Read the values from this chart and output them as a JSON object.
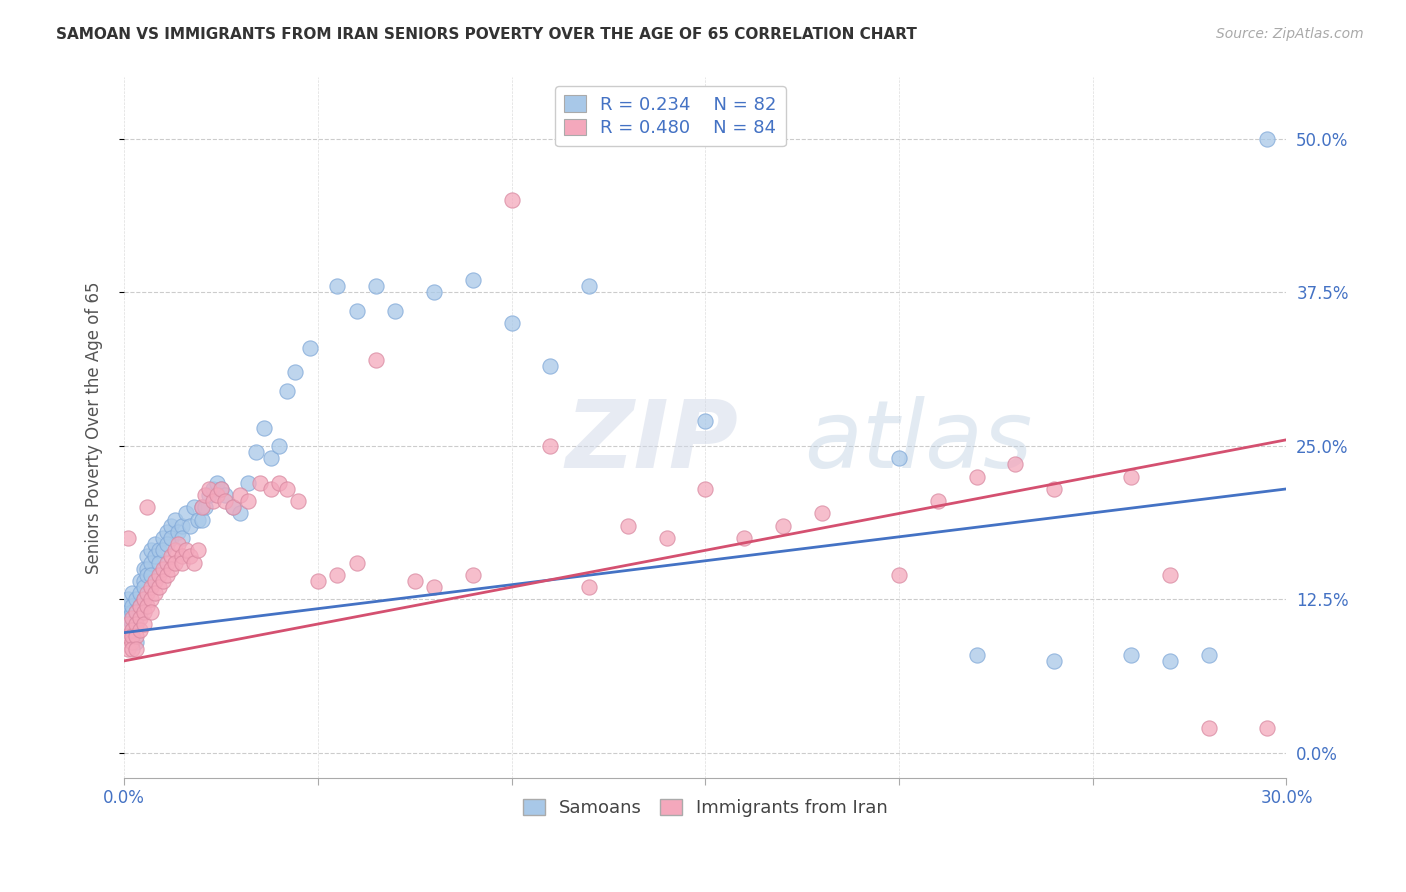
{
  "title": "SAMOAN VS IMMIGRANTS FROM IRAN SENIORS POVERTY OVER THE AGE OF 65 CORRELATION CHART",
  "source": "Source: ZipAtlas.com",
  "ylabel": "Seniors Poverty Over the Age of 65",
  "xlim": [
    0.0,
    0.3
  ],
  "ylim": [
    -0.02,
    0.55
  ],
  "samoans_R": 0.234,
  "samoans_N": 82,
  "iran_R": 0.48,
  "iran_N": 84,
  "legend_labels": [
    "Samoans",
    "Immigrants from Iran"
  ],
  "samoan_color": "#a8c8e8",
  "iran_color": "#f4a8bc",
  "samoan_line_color": "#4472C4",
  "iran_line_color": "#D45070",
  "watermark_zip": "ZIP",
  "watermark_atlas": "atlas",
  "background_color": "#ffffff",
  "samoan_line_x0": 0.0,
  "samoan_line_y0": 0.098,
  "samoan_line_x1": 0.3,
  "samoan_line_y1": 0.215,
  "iran_line_x0": 0.0,
  "iran_line_y0": 0.075,
  "iran_line_x1": 0.3,
  "iran_line_y1": 0.255,
  "samoan_x": [
    0.001,
    0.001,
    0.001,
    0.001,
    0.002,
    0.002,
    0.002,
    0.002,
    0.002,
    0.002,
    0.003,
    0.003,
    0.003,
    0.003,
    0.003,
    0.004,
    0.004,
    0.004,
    0.004,
    0.005,
    0.005,
    0.005,
    0.005,
    0.006,
    0.006,
    0.006,
    0.007,
    0.007,
    0.007,
    0.008,
    0.008,
    0.009,
    0.009,
    0.01,
    0.01,
    0.011,
    0.011,
    0.012,
    0.012,
    0.013,
    0.014,
    0.015,
    0.015,
    0.016,
    0.017,
    0.018,
    0.019,
    0.02,
    0.02,
    0.021,
    0.022,
    0.023,
    0.024,
    0.025,
    0.026,
    0.028,
    0.03,
    0.032,
    0.034,
    0.036,
    0.038,
    0.04,
    0.042,
    0.044,
    0.048,
    0.055,
    0.06,
    0.065,
    0.07,
    0.08,
    0.09,
    0.1,
    0.11,
    0.12,
    0.15,
    0.2,
    0.22,
    0.24,
    0.26,
    0.27,
    0.28,
    0.295
  ],
  "samoan_y": [
    0.115,
    0.12,
    0.125,
    0.11,
    0.13,
    0.115,
    0.12,
    0.105,
    0.1,
    0.095,
    0.125,
    0.115,
    0.11,
    0.105,
    0.09,
    0.14,
    0.13,
    0.12,
    0.115,
    0.15,
    0.14,
    0.135,
    0.125,
    0.16,
    0.15,
    0.145,
    0.165,
    0.155,
    0.145,
    0.17,
    0.16,
    0.165,
    0.155,
    0.175,
    0.165,
    0.18,
    0.17,
    0.185,
    0.175,
    0.19,
    0.18,
    0.185,
    0.175,
    0.195,
    0.185,
    0.2,
    0.19,
    0.2,
    0.19,
    0.2,
    0.21,
    0.215,
    0.22,
    0.215,
    0.21,
    0.2,
    0.195,
    0.22,
    0.245,
    0.265,
    0.24,
    0.25,
    0.295,
    0.31,
    0.33,
    0.38,
    0.36,
    0.38,
    0.36,
    0.375,
    0.385,
    0.35,
    0.315,
    0.38,
    0.27,
    0.24,
    0.08,
    0.075,
    0.08,
    0.075,
    0.08,
    0.5
  ],
  "iran_x": [
    0.001,
    0.001,
    0.001,
    0.001,
    0.002,
    0.002,
    0.002,
    0.002,
    0.002,
    0.003,
    0.003,
    0.003,
    0.003,
    0.004,
    0.004,
    0.004,
    0.005,
    0.005,
    0.005,
    0.006,
    0.006,
    0.006,
    0.007,
    0.007,
    0.007,
    0.008,
    0.008,
    0.009,
    0.009,
    0.01,
    0.01,
    0.011,
    0.011,
    0.012,
    0.012,
    0.013,
    0.013,
    0.014,
    0.015,
    0.015,
    0.016,
    0.017,
    0.018,
    0.019,
    0.02,
    0.021,
    0.022,
    0.023,
    0.024,
    0.025,
    0.026,
    0.028,
    0.03,
    0.032,
    0.035,
    0.038,
    0.04,
    0.042,
    0.045,
    0.05,
    0.055,
    0.06,
    0.065,
    0.075,
    0.08,
    0.09,
    0.1,
    0.11,
    0.12,
    0.13,
    0.14,
    0.15,
    0.16,
    0.17,
    0.18,
    0.2,
    0.21,
    0.22,
    0.23,
    0.24,
    0.26,
    0.27,
    0.28,
    0.295
  ],
  "iran_y": [
    0.175,
    0.105,
    0.095,
    0.085,
    0.09,
    0.11,
    0.1,
    0.095,
    0.085,
    0.115,
    0.105,
    0.095,
    0.085,
    0.12,
    0.11,
    0.1,
    0.125,
    0.115,
    0.105,
    0.2,
    0.13,
    0.12,
    0.135,
    0.125,
    0.115,
    0.14,
    0.13,
    0.145,
    0.135,
    0.15,
    0.14,
    0.155,
    0.145,
    0.16,
    0.15,
    0.165,
    0.155,
    0.17,
    0.16,
    0.155,
    0.165,
    0.16,
    0.155,
    0.165,
    0.2,
    0.21,
    0.215,
    0.205,
    0.21,
    0.215,
    0.205,
    0.2,
    0.21,
    0.205,
    0.22,
    0.215,
    0.22,
    0.215,
    0.205,
    0.14,
    0.145,
    0.155,
    0.32,
    0.14,
    0.135,
    0.145,
    0.45,
    0.25,
    0.135,
    0.185,
    0.175,
    0.215,
    0.175,
    0.185,
    0.195,
    0.145,
    0.205,
    0.225,
    0.235,
    0.215,
    0.225,
    0.145,
    0.02,
    0.02
  ]
}
